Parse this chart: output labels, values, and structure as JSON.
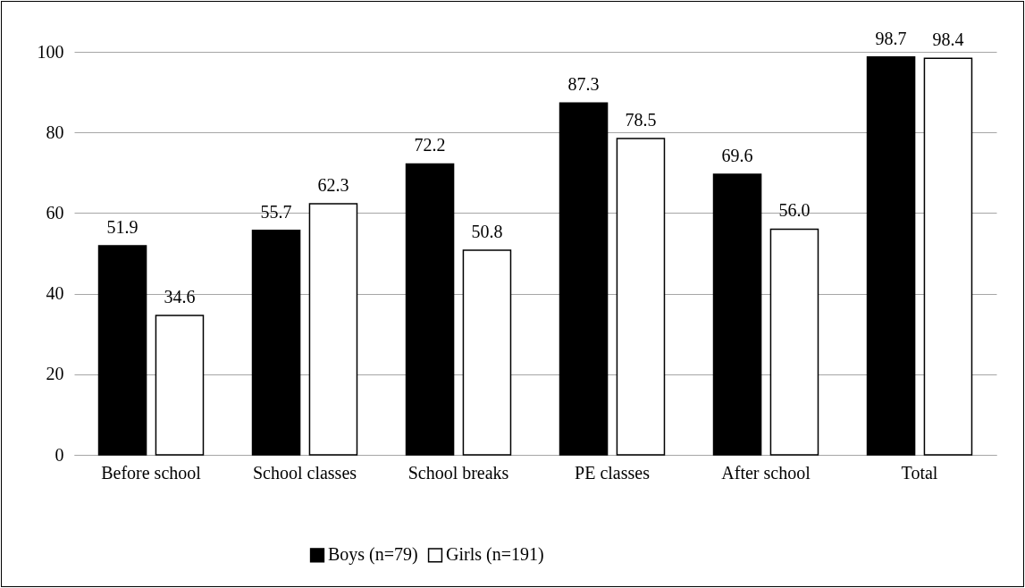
{
  "chart_data": {
    "type": "bar",
    "categories": [
      "Before school",
      "School classes",
      "School breaks",
      "PE classes",
      "After school",
      "Total"
    ],
    "series": [
      {
        "name": "Boys (n=79)",
        "color": "#000000",
        "values": [
          51.9,
          55.7,
          72.2,
          87.3,
          69.6,
          98.7
        ],
        "value_labels": [
          "51.9",
          "55.7",
          "72.2",
          "87.3",
          "69.6",
          "98.7"
        ]
      },
      {
        "name": "Girls (n=191)",
        "color": "#ffffff",
        "values": [
          34.6,
          62.3,
          50.8,
          78.5,
          56.0,
          98.4
        ],
        "value_labels": [
          "34.6",
          "62.3",
          "50.8",
          "78.5",
          "56.0",
          "98.4"
        ]
      }
    ],
    "ylim": [
      0,
      100
    ],
    "yticks": [
      0,
      20,
      40,
      60,
      80,
      100
    ],
    "grid": "y",
    "legend": "bottom"
  }
}
